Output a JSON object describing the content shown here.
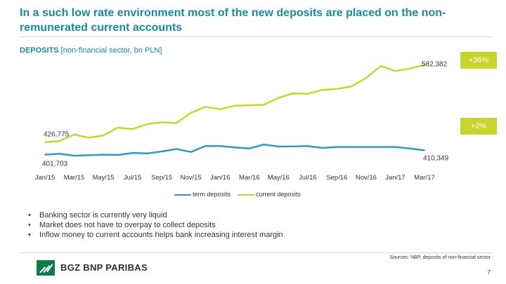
{
  "header": {
    "title": "In a such low rate environment most of the new deposits are placed on the non-remunerated current accounts"
  },
  "subtitle": {
    "bold": "DEPOSITS",
    "rest": " [non-financial sector,  bn PLN]"
  },
  "badges": {
    "current_change": "+36%",
    "term_change": "+2%",
    "color": "#c8d42e"
  },
  "colors": {
    "term": "#2e9cb8",
    "current": "#c8d42e",
    "title": "#1a8a9a"
  },
  "chart_data": {
    "type": "line",
    "title": "",
    "xlabel": "",
    "ylabel": "",
    "categories": [
      "Jan/15",
      "Feb/15",
      "Mar/15",
      "Apr/15",
      "May/15",
      "Jun/15",
      "Jul/15",
      "Aug/15",
      "Sep/15",
      "Oct/15",
      "Nov/15",
      "Dec/15",
      "Jan/16",
      "Feb/16",
      "Mar/16",
      "Apr/16",
      "May/16",
      "Jun/16",
      "Jul/16",
      "Aug/16",
      "Sep/16",
      "Oct/16",
      "Nov/16",
      "Dec/16",
      "Jan/17",
      "Feb/17",
      "Mar/17"
    ],
    "tick_labels": [
      "Jan/15",
      "Mar/15",
      "May/15",
      "Jul/15",
      "Sep/15",
      "Nov/15",
      "Jan/16",
      "Mar/16",
      "May/16",
      "Jul/16",
      "Sep/16",
      "Nov/16",
      "Jan/17",
      "Mar/17"
    ],
    "series": [
      {
        "name": "term deposits",
        "values": [
          401.7,
          403.5,
          399.5,
          400.5,
          401.5,
          401,
          405,
          404,
          408,
          413,
          407,
          419,
          419,
          416,
          414,
          422,
          418,
          418,
          419,
          415,
          417,
          417,
          417,
          417,
          417,
          414,
          410.3
        ]
      },
      {
        "name": "current deposits",
        "values": [
          426.8,
          429,
          442,
          436,
          440,
          456,
          453,
          463,
          467,
          465,
          486,
          498,
          493,
          500,
          501,
          502,
          516,
          525,
          524,
          532,
          534,
          539,
          556,
          580,
          570,
          575,
          582.4
        ]
      }
    ],
    "data_labels": {
      "current_first": "426,775",
      "current_last": "582,382",
      "term_first": "401,703",
      "term_last": "410,349"
    },
    "ylim": [
      360,
      600
    ],
    "grid": false,
    "legend": "bottom-center"
  },
  "bullets": [
    "Banking sector is currently very liquid",
    "Market does not have to overpay to collect deposits",
    "Inflow money to current accounts helps bank increasing interest margin"
  ],
  "footer": {
    "source": "Sources: NBP, deposits of non-financial sector",
    "logo_text": "BGZ BNP PARIBAS",
    "page_number": "7"
  }
}
